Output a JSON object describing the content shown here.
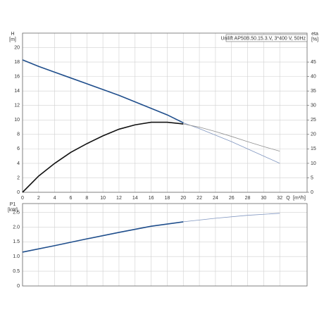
{
  "chart_data": [
    {
      "type": "line",
      "ylabel": "H",
      "yunit": "[m]",
      "y2label": "eta",
      "y2unit": "[%]",
      "xlabel": "Q",
      "xunit": "[m³/h]",
      "annotation": "Unilift AP50B.50.15.3.V, 3*400 V, 50Hz",
      "grid": true,
      "xlim": [
        0,
        35.4
      ],
      "xticks": [
        0,
        2,
        4,
        6,
        8,
        10,
        12,
        14,
        16,
        18,
        20,
        22,
        24,
        26,
        28,
        30,
        32
      ],
      "ylim": [
        0,
        22
      ],
      "yticks": [
        0,
        2,
        4,
        6,
        8,
        10,
        12,
        14,
        16,
        18,
        20
      ],
      "y2lim": [
        0,
        55
      ],
      "y2ticks": [
        0,
        5,
        10,
        15,
        20,
        25,
        30,
        35,
        40,
        45
      ],
      "series": [
        {
          "color": "#1f4e8c",
          "width": 1.6,
          "x": [
            0,
            2,
            4,
            6,
            8,
            10,
            12,
            14,
            16,
            18,
            20
          ],
          "values": [
            18.3,
            17.4,
            16.6,
            15.8,
            15.0,
            14.2,
            13.4,
            12.5,
            11.6,
            10.7,
            9.6
          ]
        },
        {
          "color": "#8096c0",
          "width": 0.8,
          "x": [
            20,
            22,
            24,
            26,
            28,
            30,
            32
          ],
          "values": [
            9.6,
            8.8,
            7.9,
            7.0,
            6.0,
            5.0,
            4.0
          ]
        },
        {
          "color": "#111111",
          "width": 1.6,
          "axis": "y2",
          "x": [
            0,
            2,
            4,
            6,
            8,
            10,
            12,
            14,
            16,
            18,
            20
          ],
          "values": [
            0,
            5.6,
            10,
            13.8,
            16.8,
            19.5,
            21.8,
            23.3,
            24.2,
            24.2,
            23.6
          ]
        },
        {
          "color": "#909090",
          "width": 0.8,
          "axis": "y2",
          "x": [
            20,
            22,
            24,
            26,
            28,
            30,
            32
          ],
          "values": [
            23.6,
            22.5,
            21.0,
            19.3,
            17.5,
            15.8,
            14.2
          ]
        }
      ]
    },
    {
      "type": "line",
      "ylabel": "P1",
      "yunit": "[kW]",
      "grid": true,
      "xlim": [
        0,
        35.4
      ],
      "xticks": [
        0,
        2,
        4,
        6,
        8,
        10,
        12,
        14,
        16,
        18,
        20,
        22,
        24,
        26,
        28,
        30,
        32
      ],
      "ylim": [
        0,
        2.8
      ],
      "yticks": [
        0,
        0.5,
        {
          "value": 1,
          "label": "1.0"
        },
        {
          "value": 1.5,
          "label": "1.5"
        },
        {
          "value": 2,
          "label": "2.0"
        },
        {
          "value": 2.5,
          "label": "2.5"
        }
      ],
      "series": [
        {
          "color": "#1f4e8c",
          "width": 1.6,
          "x": [
            0,
            4,
            8,
            12,
            16,
            20
          ],
          "values": [
            1.15,
            1.37,
            1.6,
            1.82,
            2.03,
            2.18
          ]
        },
        {
          "color": "#8096c0",
          "width": 0.8,
          "x": [
            20,
            24,
            28,
            32
          ],
          "values": [
            2.18,
            2.3,
            2.4,
            2.47
          ]
        }
      ]
    }
  ]
}
